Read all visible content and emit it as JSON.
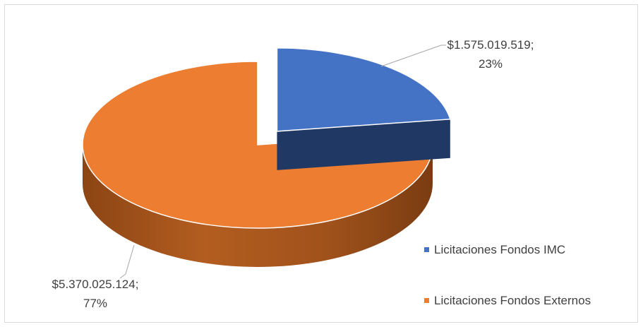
{
  "chart_data": {
    "type": "pie",
    "title": "",
    "categories": [
      "Licitaciones Fondos IMC",
      "Licitaciones Fondos Externos"
    ],
    "values": [
      1575019519,
      5370025124
    ],
    "percentages": [
      23,
      77
    ],
    "series": [
      {
        "values": [
          1575019519,
          5370025124
        ]
      }
    ],
    "data_labels": [
      {
        "line1": "$1.575.019.519;",
        "line2": "23%"
      },
      {
        "line1": "$5.370.025.124;",
        "line2": "77%"
      }
    ],
    "colors": [
      "#4472C4",
      "#ED7D31"
    ],
    "side_colors": [
      "#203864",
      "#A0521B"
    ],
    "style": "3d-exploded",
    "legend": {
      "placement": "right",
      "entries": [
        "Licitaciones Fondos IMC",
        "Licitaciones Fondos Externos"
      ]
    }
  }
}
